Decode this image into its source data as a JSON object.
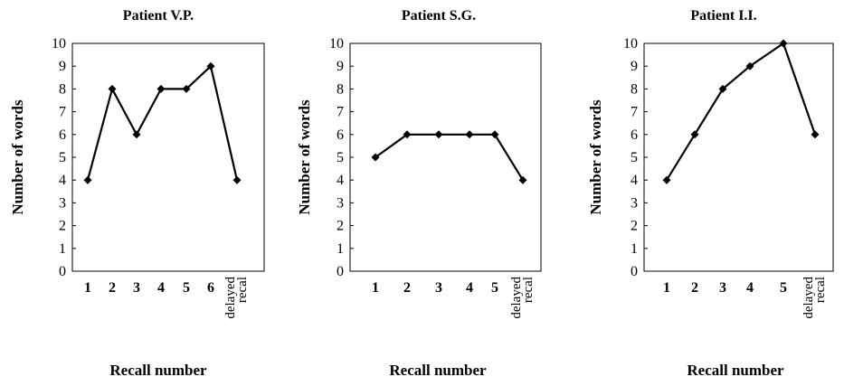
{
  "chart_data": [
    {
      "type": "line",
      "title": "Patient V.P.",
      "xlabel": "Recall number",
      "ylabel": "Number of words",
      "ylim": [
        0,
        10
      ],
      "yticks": [
        "0",
        "1",
        "2",
        "3",
        "4",
        "5",
        "6",
        "7",
        "8",
        "9",
        "10"
      ],
      "categories": [
        "1",
        "2",
        "3",
        "4",
        "5",
        "6",
        "delayed recal"
      ],
      "values": [
        4,
        8,
        6,
        8,
        8,
        9,
        4
      ],
      "grid": false,
      "legend": "none"
    },
    {
      "type": "line",
      "title": "Patient S.G.",
      "xlabel": "Recall number",
      "ylabel": "Number of words",
      "ylim": [
        0,
        10
      ],
      "yticks": [
        "0",
        "1",
        "2",
        "3",
        "4",
        "5",
        "6",
        "7",
        "8",
        "9",
        "10"
      ],
      "categories": [
        "1",
        "2",
        "3",
        "4",
        "5",
        "delayed recal"
      ],
      "values": [
        5,
        6,
        6,
        6,
        6,
        4
      ],
      "grid": false,
      "legend": "none"
    },
    {
      "type": "line",
      "title": "Patient I.I.",
      "xlabel": "Recall number",
      "ylabel": "Number of words",
      "ylim": [
        0,
        10
      ],
      "yticks": [
        "0",
        "1",
        "2",
        "3",
        "4",
        "5",
        "6",
        "7",
        "8",
        "9",
        "10"
      ],
      "categories": [
        "1",
        "2",
        "3",
        "4",
        "5",
        "delayed recal"
      ],
      "values": [
        4,
        6,
        8,
        9,
        10,
        6
      ],
      "grid": false,
      "legend": "none"
    }
  ]
}
